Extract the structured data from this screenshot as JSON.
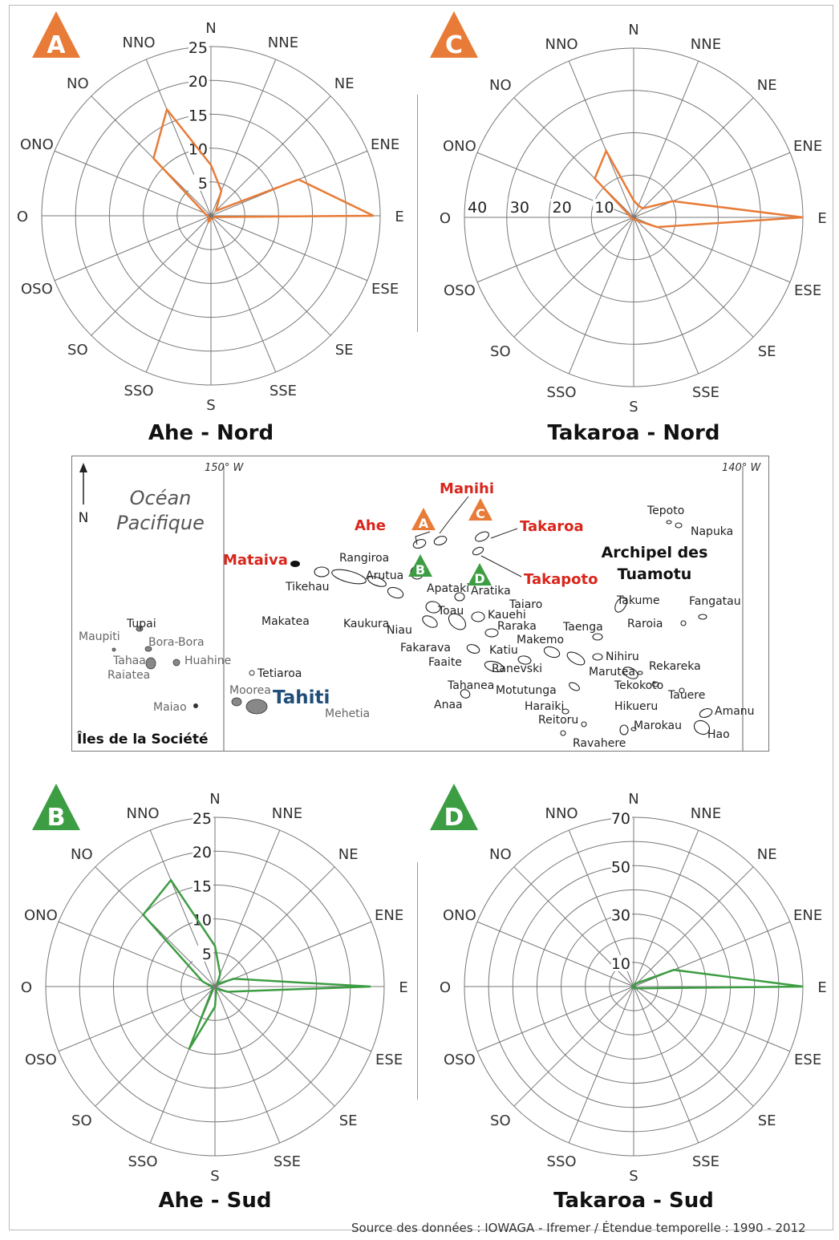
{
  "directions": [
    "N",
    "NNE",
    "NE",
    "ENE",
    "E",
    "ESE",
    "SE",
    "SSE",
    "S",
    "SSO",
    "SO",
    "OSO",
    "O",
    "ONO",
    "NO",
    "NNO"
  ],
  "colors": {
    "nord": "#e87b37",
    "sud": "#3d9d43",
    "ring": "#777777",
    "map_red": "#d8261c",
    "map_blue": "#1f4e79"
  },
  "chart_data": [
    {
      "id": "A",
      "type": "polar",
      "title": "Ahe - Nord",
      "badge": "A",
      "badge_color": "#e87b37",
      "rmax": 25,
      "tick_values": [
        5,
        10,
        15,
        20,
        25
      ],
      "tick_labels": [
        "5",
        "10",
        "15",
        "20",
        "25"
      ],
      "tick_side": "N",
      "values": [
        7.5,
        4,
        1,
        14,
        24,
        0.5,
        0.5,
        0.5,
        0.5,
        1,
        0.5,
        0.5,
        0.5,
        1,
        12,
        17
      ],
      "color": "#e87b37"
    },
    {
      "id": "C",
      "type": "polar",
      "title": "Takaroa - Nord",
      "badge": "C",
      "badge_color": "#e87b37",
      "rmax": 40,
      "tick_values": [
        10,
        20,
        30,
        40
      ],
      "tick_labels": [
        "10",
        "20",
        "30",
        "40"
      ],
      "tick_side": "O",
      "values": [
        4,
        3,
        3,
        10,
        40,
        6,
        1,
        0.5,
        0.5,
        0.5,
        0.5,
        0.5,
        0.5,
        1,
        13,
        17
      ],
      "color": "#e87b37"
    },
    {
      "id": "B",
      "type": "polar",
      "title": "Ahe - Sud",
      "badge": "B",
      "badge_color": "#3d9d43",
      "rmax": 25,
      "tick_values": [
        5,
        10,
        15,
        20,
        25
      ],
      "tick_labels": [
        "5",
        "10",
        "15",
        "20",
        "25"
      ],
      "tick_side": "N",
      "values": [
        6,
        2,
        0.5,
        3,
        23,
        2,
        0.5,
        0.5,
        3,
        10,
        0.5,
        0.5,
        0.5,
        2,
        15,
        17
      ],
      "color": "#3d9d43"
    },
    {
      "id": "D",
      "type": "polar",
      "title": "Takaroa - Sud",
      "badge": "D",
      "badge_color": "#3d9d43",
      "rmax": 70,
      "tick_values": [
        10,
        30,
        50,
        70
      ],
      "tick_labels": [
        "10",
        "30",
        "50",
        "70"
      ],
      "tick_side": "N",
      "ring_values": [
        10,
        20,
        30,
        40,
        50,
        60,
        70
      ],
      "values": [
        0.5,
        1,
        2,
        18,
        70,
        2,
        1,
        0.5,
        0.5,
        0.5,
        0.5,
        0.5,
        0.5,
        0.5,
        0.5,
        0.5
      ],
      "color": "#3d9d43"
    }
  ],
  "map": {
    "north": "N",
    "ocean": [
      "Océan",
      "Pacifique"
    ],
    "lon_west": "150° W",
    "lon_east": "140° W",
    "archipel": [
      "Archipel des",
      "Tuamotu"
    ],
    "societe": "Îles de la Société",
    "tahiti": "Tahiti",
    "red_labels": {
      "manihi": "Manihi",
      "ahe": "Ahe",
      "takaroa": "Takaroa",
      "mataiva": "Mataiva",
      "takapoto": "Takapoto"
    },
    "badges": {
      "A": "A",
      "B": "B",
      "C": "C",
      "D": "D"
    },
    "labels": [
      {
        "t": "Tepoto"
      },
      {
        "t": "Napuka"
      },
      {
        "t": "Rangiroa"
      },
      {
        "t": "Tikehau"
      },
      {
        "t": "Arutua"
      },
      {
        "t": "Apataki"
      },
      {
        "t": "Aratika"
      },
      {
        "t": "Makatea"
      },
      {
        "t": "Kaukura"
      },
      {
        "t": "Toau"
      },
      {
        "t": "Kauehi"
      },
      {
        "t": "Taiaro"
      },
      {
        "t": "Raraka"
      },
      {
        "t": "Takume"
      },
      {
        "t": "Raroia"
      },
      {
        "t": "Fangatau"
      },
      {
        "t": "Niau"
      },
      {
        "t": "Fakarava"
      },
      {
        "t": "Makemo"
      },
      {
        "t": "Taenga"
      },
      {
        "t": "Katiu"
      },
      {
        "t": "Faaite"
      },
      {
        "t": "Ranevski"
      },
      {
        "t": "Nihiru"
      },
      {
        "t": "Marutea"
      },
      {
        "t": "Rekareka"
      },
      {
        "t": "Tahanea"
      },
      {
        "t": "Motutunga"
      },
      {
        "t": "Tekokoto"
      },
      {
        "t": "Tauere"
      },
      {
        "t": "Anaa"
      },
      {
        "t": "Haraiki"
      },
      {
        "t": "Hikueru"
      },
      {
        "t": "Amanu"
      },
      {
        "t": "Reitoru"
      },
      {
        "t": "Marokau"
      },
      {
        "t": "Hao"
      },
      {
        "t": "Ravahere"
      },
      {
        "t": "Tetiaroa"
      },
      {
        "t": "Mehetia"
      },
      {
        "t": "Tupai"
      },
      {
        "t": "Maupiti"
      },
      {
        "t": "Bora-Bora"
      },
      {
        "t": "Tahaa"
      },
      {
        "t": "Huahine"
      },
      {
        "t": "Raiatea"
      },
      {
        "t": "Moorea"
      },
      {
        "t": "Maiao"
      }
    ]
  },
  "source": "Source des données : IOWAGA - Ifremer / Étendue temporelle : 1990 - 2012"
}
